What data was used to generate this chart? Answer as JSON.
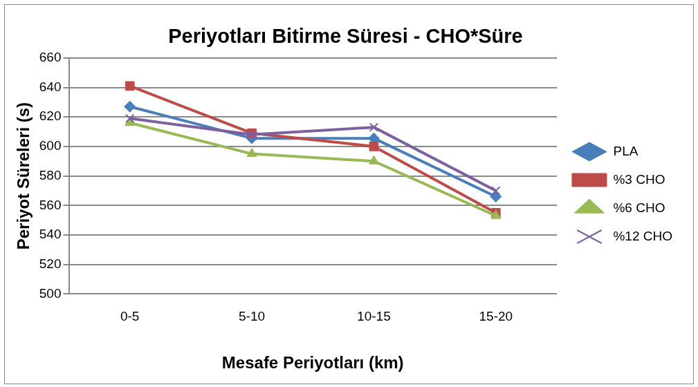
{
  "chart_data": {
    "type": "line",
    "title": "Periyotları Bitirme Süresi - CHO*Süre",
    "xlabel": "Mesafe Periyotları (km)",
    "ylabel": "Periyot Süreleri (s)",
    "categories": [
      "0-5",
      "5-10",
      "10-15",
      "15-20"
    ],
    "series": [
      {
        "name": "PLA",
        "color": "#4a7ebb",
        "marker": "diamond",
        "values": [
          627,
          605.5,
          605.5,
          566
        ]
      },
      {
        "name": "%3 CHO",
        "color": "#be4b48",
        "marker": "square",
        "values": [
          641,
          609,
          600,
          555
        ]
      },
      {
        "name": "%6 CHO",
        "color": "#98b954",
        "marker": "triangle",
        "values": [
          616,
          595,
          590,
          553
        ]
      },
      {
        "name": "%12 CHO",
        "color": "#7d60a0",
        "marker": "cross",
        "values": [
          619,
          608,
          613,
          570
        ]
      }
    ],
    "ylim": [
      500,
      660
    ],
    "yticks": [
      500,
      520,
      540,
      560,
      580,
      600,
      620,
      640,
      660
    ],
    "grid": "y",
    "legend": "right"
  }
}
